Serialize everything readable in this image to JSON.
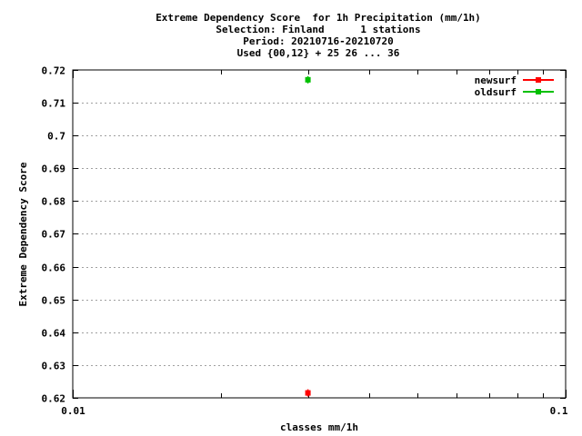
{
  "chart_data": {
    "type": "scatter",
    "title": [
      "Extreme Dependency Score  for 1h Precipitation (mm/1h)",
      "Selection: Finland      1 stations",
      "Period: 20210716-20210720",
      "Used {00,12} + 25 26 ... 36"
    ],
    "xlabel": "classes mm/1h",
    "ylabel": "Extreme Dependency Score",
    "x_scale": "log",
    "xlim": [
      0.01,
      0.1
    ],
    "ylim": [
      0.62,
      0.72
    ],
    "x_ticks": [
      {
        "value": 0.01,
        "label": "0.01"
      },
      {
        "value": 0.1,
        "label": "0.1"
      }
    ],
    "y_ticks": [
      {
        "value": 0.62,
        "label": "0.62"
      },
      {
        "value": 0.63,
        "label": "0.63"
      },
      {
        "value": 0.64,
        "label": "0.64"
      },
      {
        "value": 0.65,
        "label": "0.65"
      },
      {
        "value": 0.66,
        "label": "0.66"
      },
      {
        "value": 0.67,
        "label": "0.67"
      },
      {
        "value": 0.68,
        "label": "0.68"
      },
      {
        "value": 0.69,
        "label": "0.69"
      },
      {
        "value": 0.7,
        "label": "0.7"
      },
      {
        "value": 0.71,
        "label": "0.71"
      },
      {
        "value": 0.72,
        "label": "0.72"
      }
    ],
    "grid": "horizontal",
    "legend_position": "top-right",
    "series": [
      {
        "name": "newsurf",
        "color": "#ff0000",
        "x": [
          0.03
        ],
        "y": [
          0.6215
        ]
      },
      {
        "name": "oldsurf",
        "color": "#00c000",
        "x": [
          0.03
        ],
        "y": [
          0.717
        ]
      }
    ]
  }
}
